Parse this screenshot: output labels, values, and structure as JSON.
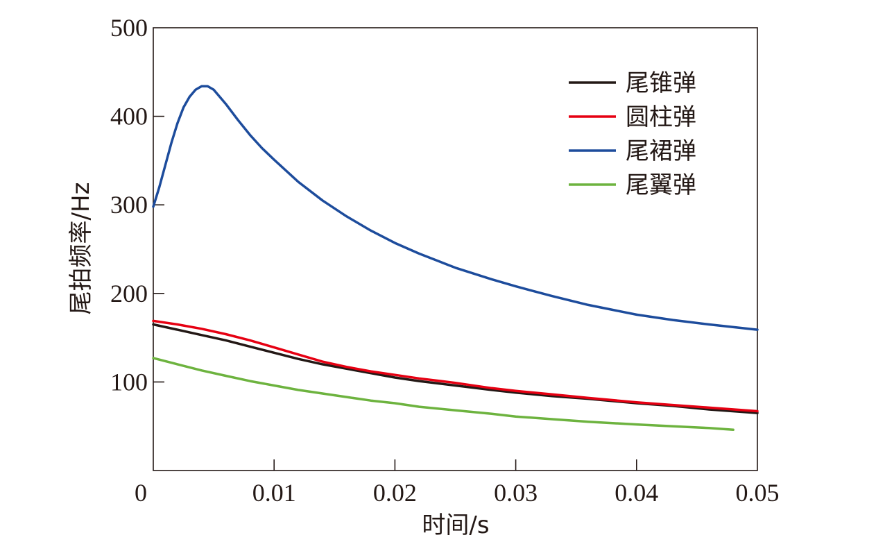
{
  "chart_data": {
    "type": "line",
    "title": "",
    "xlabel": "时间/s",
    "ylabel": "尾拍频率/Hz",
    "xlim": [
      0,
      0.05
    ],
    "ylim": [
      0,
      500
    ],
    "x_ticks": [
      0,
      0.01,
      0.02,
      0.03,
      0.04,
      0.05
    ],
    "x_tick_labels": [
      "0",
      "0.01",
      "0.02",
      "0.03",
      "0.04",
      "0.05"
    ],
    "y_ticks": [
      100,
      200,
      300,
      400,
      500
    ],
    "y_tick_labels": [
      "100",
      "200",
      "300",
      "400",
      "500"
    ],
    "grid": false,
    "legend_position": "top-right",
    "series": [
      {
        "name": "尾锥弹",
        "color": "#231815",
        "x": [
          0,
          0.002,
          0.004,
          0.006,
          0.008,
          0.01,
          0.012,
          0.014,
          0.016,
          0.018,
          0.02,
          0.022,
          0.025,
          0.028,
          0.03,
          0.033,
          0.036,
          0.04,
          0.043,
          0.046,
          0.05
        ],
        "y": [
          165,
          159,
          153,
          147,
          140,
          133,
          126,
          120,
          115,
          110,
          105,
          101,
          96,
          91,
          88,
          84,
          81,
          76,
          73,
          69,
          65
        ]
      },
      {
        "name": "圆柱弹",
        "color": "#e60012",
        "x": [
          0,
          0.002,
          0.004,
          0.006,
          0.008,
          0.01,
          0.012,
          0.014,
          0.016,
          0.018,
          0.02,
          0.022,
          0.025,
          0.028,
          0.03,
          0.033,
          0.036,
          0.04,
          0.043,
          0.046,
          0.05
        ],
        "y": [
          169,
          165,
          160,
          154,
          147,
          139,
          131,
          123,
          117,
          112,
          108,
          104,
          99,
          93,
          90,
          86,
          82,
          77,
          74,
          71,
          67
        ]
      },
      {
        "name": "尾裙弹",
        "color": "#1d4c9c",
        "x": [
          0,
          0.0005,
          0.001,
          0.0015,
          0.002,
          0.0025,
          0.003,
          0.0035,
          0.004,
          0.0045,
          0.005,
          0.006,
          0.007,
          0.008,
          0.009,
          0.01,
          0.012,
          0.014,
          0.016,
          0.018,
          0.02,
          0.022,
          0.025,
          0.028,
          0.03,
          0.033,
          0.036,
          0.04,
          0.043,
          0.046,
          0.05
        ],
        "y": [
          298,
          320,
          345,
          370,
          392,
          410,
          422,
          430,
          434,
          434,
          430,
          414,
          396,
          379,
          364,
          351,
          326,
          305,
          287,
          271,
          257,
          245,
          229,
          216,
          208,
          197,
          187,
          176,
          170,
          165,
          159
        ]
      },
      {
        "name": "尾翼弹",
        "color": "#6db33f",
        "x": [
          0,
          0.002,
          0.004,
          0.006,
          0.008,
          0.01,
          0.012,
          0.014,
          0.016,
          0.018,
          0.02,
          0.022,
          0.025,
          0.028,
          0.03,
          0.033,
          0.036,
          0.04,
          0.043,
          0.046,
          0.048
        ],
        "y": [
          127,
          120,
          113,
          107,
          101,
          96,
          91,
          87,
          83,
          79,
          76,
          72,
          68,
          64,
          61,
          58,
          55,
          52,
          50,
          48,
          46
        ]
      }
    ]
  }
}
